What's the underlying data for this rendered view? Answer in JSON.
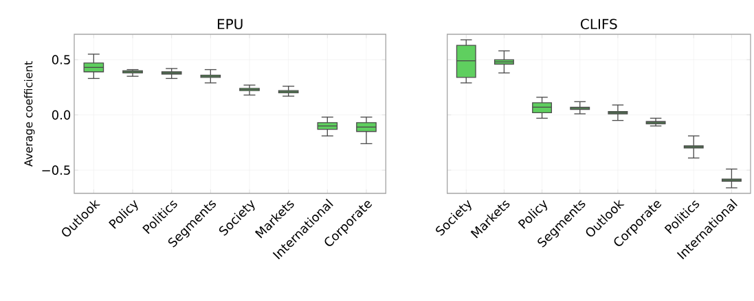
{
  "chart_data": [
    {
      "type": "box",
      "title": "EPU",
      "ylabel": "Average coefficient",
      "color": "#5fcf5f",
      "grid": true,
      "categories": [
        "Outlook",
        "Policy",
        "Politics",
        "Segments",
        "Society",
        "Markets",
        "International",
        "Corporate"
      ],
      "boxes": [
        {
          "low": 0.33,
          "q1": 0.39,
          "median": 0.43,
          "q3": 0.47,
          "high": 0.55
        },
        {
          "low": 0.35,
          "q1": 0.38,
          "median": 0.39,
          "q3": 0.4,
          "high": 0.41
        },
        {
          "low": 0.33,
          "q1": 0.37,
          "median": 0.38,
          "q3": 0.39,
          "high": 0.42
        },
        {
          "low": 0.29,
          "q1": 0.34,
          "median": 0.35,
          "q3": 0.36,
          "high": 0.41
        },
        {
          "low": 0.18,
          "q1": 0.22,
          "median": 0.23,
          "q3": 0.24,
          "high": 0.27
        },
        {
          "low": 0.17,
          "q1": 0.2,
          "median": 0.21,
          "q3": 0.22,
          "high": 0.26
        },
        {
          "low": -0.19,
          "q1": -0.13,
          "median": -0.1,
          "q3": -0.07,
          "high": -0.02
        },
        {
          "low": -0.26,
          "q1": -0.15,
          "median": -0.11,
          "q3": -0.07,
          "high": -0.02
        }
      ],
      "ylim": [
        -0.71,
        0.73
      ],
      "yticks": [
        {
          "value": -0.5,
          "label": "−0.5"
        },
        {
          "value": 0,
          "label": "0.0"
        },
        0.5
      ]
    },
    {
      "type": "box",
      "title": "CLIFS",
      "color": "#5fcf5f",
      "grid": true,
      "tick_labels": "x",
      "categories": [
        "Society",
        "Markets",
        "Policy",
        "Segments",
        "Outlook",
        "Corporate",
        "Politics",
        "International"
      ],
      "boxes": [
        {
          "low": 0.29,
          "q1": 0.34,
          "median": 0.49,
          "q3": 0.63,
          "high": 0.68
        },
        {
          "low": 0.38,
          "q1": 0.46,
          "median": 0.48,
          "q3": 0.5,
          "high": 0.58
        },
        {
          "low": -0.03,
          "q1": 0.02,
          "median": 0.07,
          "q3": 0.11,
          "high": 0.16
        },
        {
          "low": 0.01,
          "q1": 0.05,
          "median": 0.06,
          "q3": 0.07,
          "high": 0.12
        },
        {
          "low": -0.05,
          "q1": 0.01,
          "median": 0.02,
          "q3": 0.03,
          "high": 0.09
        },
        {
          "low": -0.1,
          "q1": -0.08,
          "median": -0.07,
          "q3": -0.06,
          "high": -0.03
        },
        {
          "low": -0.39,
          "q1": -0.3,
          "median": -0.29,
          "q3": -0.28,
          "high": -0.19
        },
        {
          "low": -0.66,
          "q1": -0.6,
          "median": -0.59,
          "q3": -0.58,
          "high": -0.49
        }
      ],
      "ylim": [
        -0.71,
        0.73
      ],
      "yticks": [
        {
          "value": -0.5,
          "label": null
        },
        {
          "value": 0,
          "label": null
        },
        {
          "value": 0.5,
          "label": null
        }
      ]
    }
  ]
}
